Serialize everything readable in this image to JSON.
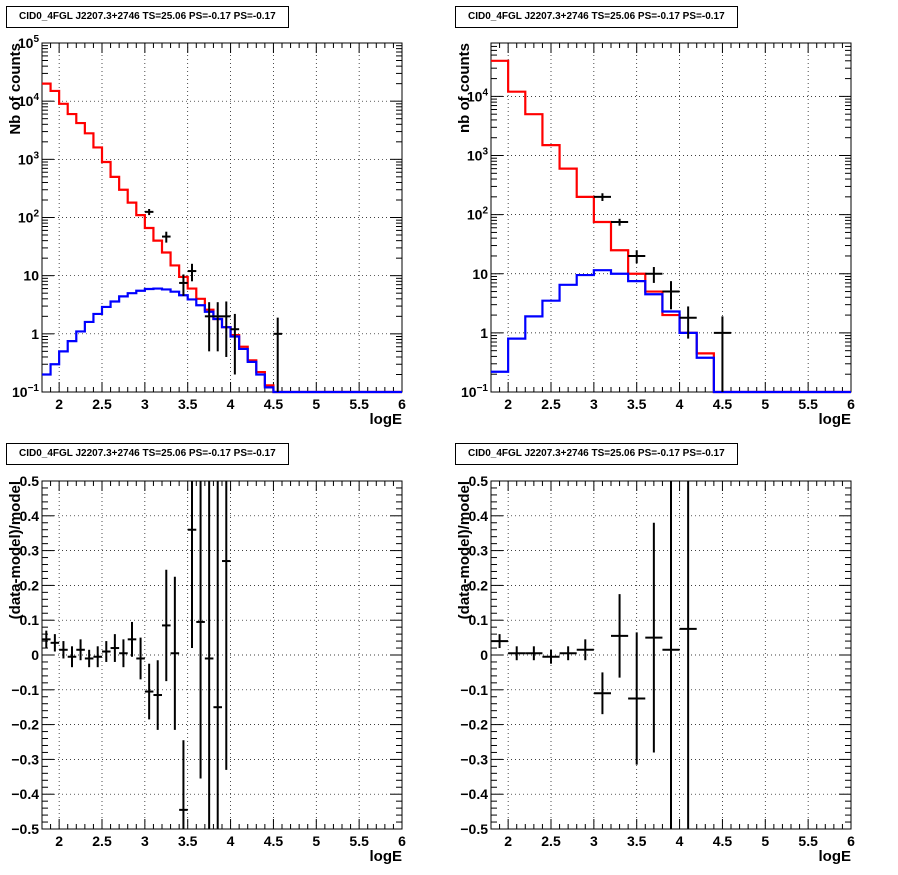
{
  "chart_data": [
    {
      "type": "histogram",
      "title": "CID0_4FGL J2207.3+2746 TS=25.06 PS=-0.17 PS=-0.17",
      "xlabel": "logE",
      "ylabel": "Nb of counts",
      "xlim": [
        1.8,
        6
      ],
      "ylim": [
        0.1,
        100000
      ],
      "log_y": true,
      "grid": true,
      "x_ticks": [
        "2",
        "2.5",
        "3",
        "3.5",
        "4",
        "4.5",
        "5",
        "5.5",
        "6"
      ],
      "y_ticks": [
        "10^-1",
        "1",
        "10",
        "10^2",
        "10^3",
        "10^4",
        "10^5"
      ],
      "bin_edges": [
        1.8,
        1.9,
        2.0,
        2.1,
        2.2,
        2.3,
        2.4,
        2.5,
        2.6,
        2.7,
        2.8,
        2.9,
        3.0,
        3.1,
        3.2,
        3.3,
        3.4,
        3.5,
        3.6,
        3.7,
        3.8,
        3.9,
        4.0,
        4.1,
        4.2,
        4.3,
        4.4,
        4.5,
        4.6,
        4.7,
        4.8,
        4.9,
        5.0,
        5.1,
        5.2,
        5.3,
        5.4,
        5.5,
        5.6,
        5.7,
        5.8,
        5.9,
        6.0
      ],
      "series": [
        {
          "color": "#ff0000",
          "kind": "model-total",
          "values": [
            20000,
            15000,
            9000,
            6000,
            4200,
            2800,
            1600,
            900,
            500,
            300,
            180,
            110,
            66,
            40,
            25,
            15,
            9.5,
            6,
            4,
            2.6,
            1.8,
            1.3,
            0.95,
            0.6,
            0.35,
            0.22,
            0.13,
            0.1,
            0.1,
            0.1,
            0.1,
            0.1,
            0.1,
            0.1,
            0.1,
            0.1,
            0.1,
            0.1,
            0.1,
            0.1,
            0.1,
            0.1
          ]
        },
        {
          "color": "#0000ff",
          "kind": "model-source",
          "values": [
            0.2,
            0.3,
            0.5,
            0.75,
            1.1,
            1.6,
            2.2,
            2.9,
            3.6,
            4.4,
            5.0,
            5.5,
            5.9,
            6.0,
            5.8,
            5.3,
            4.6,
            3.9,
            3.1,
            2.4,
            1.8,
            1.3,
            0.9,
            0.55,
            0.33,
            0.2,
            0.12,
            0.1,
            0.1,
            0.1,
            0.1,
            0.1,
            0.1,
            0.1,
            0.1,
            0.1,
            0.1,
            0.1,
            0.1,
            0.1,
            0.1,
            0.1
          ]
        }
      ],
      "data_points": {
        "color": "#000000",
        "points": [
          [
            3.05,
            125,
            15
          ],
          [
            3.25,
            47,
            10
          ],
          [
            3.45,
            7.5,
            3
          ],
          [
            3.55,
            12,
            4
          ],
          [
            3.75,
            2,
            1.5
          ],
          [
            3.85,
            2,
            1.5
          ],
          [
            3.95,
            2,
            1.6
          ],
          [
            4.05,
            1.2,
            1.0
          ],
          [
            4.55,
            1.0,
            0.9
          ]
        ]
      }
    },
    {
      "type": "histogram",
      "title": "CID0_4FGL J2207.3+2746 TS=25.06 PS=-0.17 PS=-0.17",
      "xlabel": "logE",
      "ylabel": "nb of counts",
      "xlim": [
        1.8,
        6
      ],
      "ylim": [
        0.1,
        80000
      ],
      "log_y": true,
      "grid": true,
      "x_ticks": [
        "2",
        "2.5",
        "3",
        "3.5",
        "4",
        "4.5",
        "5",
        "5.5",
        "6"
      ],
      "y_ticks": [
        "10^-1",
        "1",
        "10",
        "10^2",
        "10^3",
        "10^4"
      ],
      "bin_edges": [
        1.8,
        2.0,
        2.2,
        2.4,
        2.6,
        2.8,
        3.0,
        3.2,
        3.4,
        3.6,
        3.8,
        4.0,
        4.2,
        4.4,
        4.6,
        4.8,
        5.0,
        5.2,
        5.4,
        5.6,
        5.8,
        6.0
      ],
      "series": [
        {
          "color": "#ff0000",
          "kind": "model-total",
          "values": [
            40000,
            12000,
            5000,
            1500,
            600,
            200,
            75,
            25,
            10,
            5,
            2,
            1,
            0.45,
            0.1,
            0.1,
            0.1,
            0.1,
            0.1,
            0.1,
            0.1,
            0.1
          ]
        },
        {
          "color": "#0000ff",
          "kind": "model-source",
          "values": [
            0.22,
            0.8,
            1.9,
            3.5,
            6.5,
            9.5,
            11.5,
            10,
            7.5,
            4.5,
            2.3,
            1.0,
            0.38,
            0.1,
            0.1,
            0.1,
            0.1,
            0.1,
            0.1,
            0.1,
            0.1
          ]
        }
      ],
      "data_points": {
        "color": "#000000",
        "points": [
          [
            3.1,
            200,
            30
          ],
          [
            3.3,
            75,
            10
          ],
          [
            3.5,
            20,
            5
          ],
          [
            3.7,
            10,
            3
          ],
          [
            3.9,
            5,
            2.5
          ],
          [
            4.1,
            1.8,
            1.0
          ],
          [
            4.5,
            1.0,
            0.9
          ]
        ]
      }
    },
    {
      "type": "errorbar",
      "title": "CID0_4FGL J2207.3+2746 TS=25.06 PS=-0.17 PS=-0.17",
      "xlabel": "logE",
      "ylabel": "(data-model)/model",
      "xlim": [
        1.8,
        6
      ],
      "ylim": [
        -0.5,
        0.5
      ],
      "grid": true,
      "x_ticks": [
        "2",
        "2.5",
        "3",
        "3.5",
        "4",
        "4.5",
        "5",
        "5.5",
        "6"
      ],
      "y_ticks": [
        "-0.5",
        "-0.4",
        "-0.3",
        "-0.2",
        "-0.1",
        "0",
        "0.1",
        "0.2",
        "0.3",
        "0.4",
        "0.5"
      ],
      "points": [
        [
          1.85,
          0.045,
          0.025
        ],
        [
          1.95,
          0.035,
          0.025
        ],
        [
          2.05,
          0.015,
          0.025
        ],
        [
          2.15,
          -0.005,
          0.03
        ],
        [
          2.25,
          0.015,
          0.03
        ],
        [
          2.35,
          -0.01,
          0.025
        ],
        [
          2.45,
          -0.005,
          0.03
        ],
        [
          2.55,
          0.01,
          0.03
        ],
        [
          2.65,
          0.02,
          0.04
        ],
        [
          2.75,
          0.005,
          0.04
        ],
        [
          2.85,
          0.045,
          0.05
        ],
        [
          2.95,
          -0.01,
          0.06
        ],
        [
          3.05,
          -0.105,
          0.08
        ],
        [
          3.15,
          -0.115,
          0.1
        ],
        [
          3.25,
          0.085,
          0.16
        ],
        [
          3.35,
          0.005,
          0.22
        ],
        [
          3.45,
          -0.445,
          0.2
        ],
        [
          3.55,
          0.36,
          0.34
        ],
        [
          3.65,
          0.095,
          0.45
        ],
        [
          3.75,
          -0.01,
          0.6
        ],
        [
          3.85,
          -0.15,
          0.65
        ],
        [
          3.95,
          0.27,
          0.6
        ]
      ],
      "marker_color": "#000000"
    },
    {
      "type": "errorbar",
      "title": "CID0_4FGL J2207.3+2746 TS=25.06 PS=-0.17 PS=-0.17",
      "xlabel": "logE",
      "ylabel": "(data-model)/model",
      "xlim": [
        1.8,
        6
      ],
      "ylim": [
        -0.5,
        0.5
      ],
      "grid": true,
      "x_ticks": [
        "2",
        "2.5",
        "3",
        "3.5",
        "4",
        "4.5",
        "5",
        "5.5",
        "6"
      ],
      "y_ticks": [
        "-0.5",
        "-0.4",
        "-0.3",
        "-0.2",
        "-0.1",
        "0",
        "0.1",
        "0.2",
        "0.3",
        "0.4",
        "0.5"
      ],
      "points": [
        [
          1.9,
          0.04,
          0.02
        ],
        [
          2.1,
          0.005,
          0.02
        ],
        [
          2.3,
          0.005,
          0.02
        ],
        [
          2.5,
          -0.005,
          0.02
        ],
        [
          2.7,
          0.005,
          0.02
        ],
        [
          2.9,
          0.015,
          0.03
        ],
        [
          3.1,
          -0.11,
          0.06
        ],
        [
          3.3,
          0.055,
          0.12
        ],
        [
          3.5,
          -0.125,
          0.19
        ],
        [
          3.7,
          0.05,
          0.33
        ],
        [
          3.9,
          0.015,
          0.75
        ],
        [
          4.1,
          0.075,
          0.9
        ]
      ],
      "marker_color": "#000000"
    }
  ]
}
